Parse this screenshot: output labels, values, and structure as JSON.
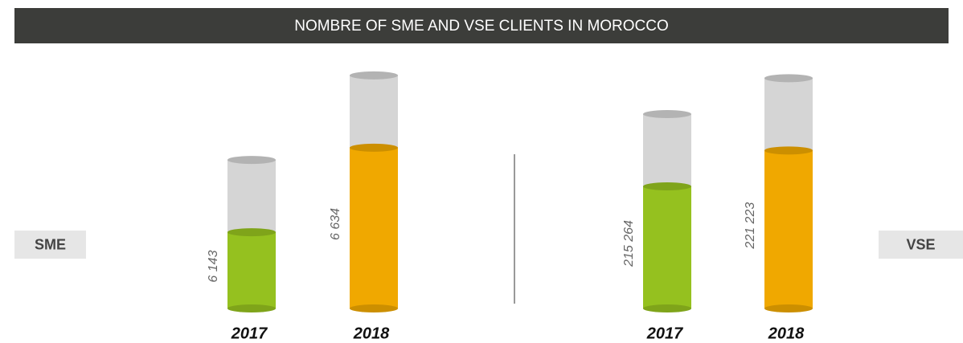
{
  "title": "NOMBRE OF SME AND VSE CLIENTS IN MOROCCO",
  "chart_data": [
    {
      "type": "bar",
      "label": "SME",
      "categories": [
        "2017",
        "2018"
      ],
      "values": [
        6143,
        6634
      ],
      "value_labels": [
        "6 143",
        "6 634"
      ],
      "colors": [
        "#95c11f",
        "#f0a800"
      ],
      "ylim": [
        5700,
        7100
      ]
    },
    {
      "type": "bar",
      "label": "VSE",
      "categories": [
        "2017",
        "2018"
      ],
      "values": [
        215264,
        221223
      ],
      "value_labels": [
        "215 264",
        "221 223"
      ],
      "colors": [
        "#95c11f",
        "#f0a800"
      ],
      "ylim": [
        195000,
        235000
      ]
    }
  ]
}
